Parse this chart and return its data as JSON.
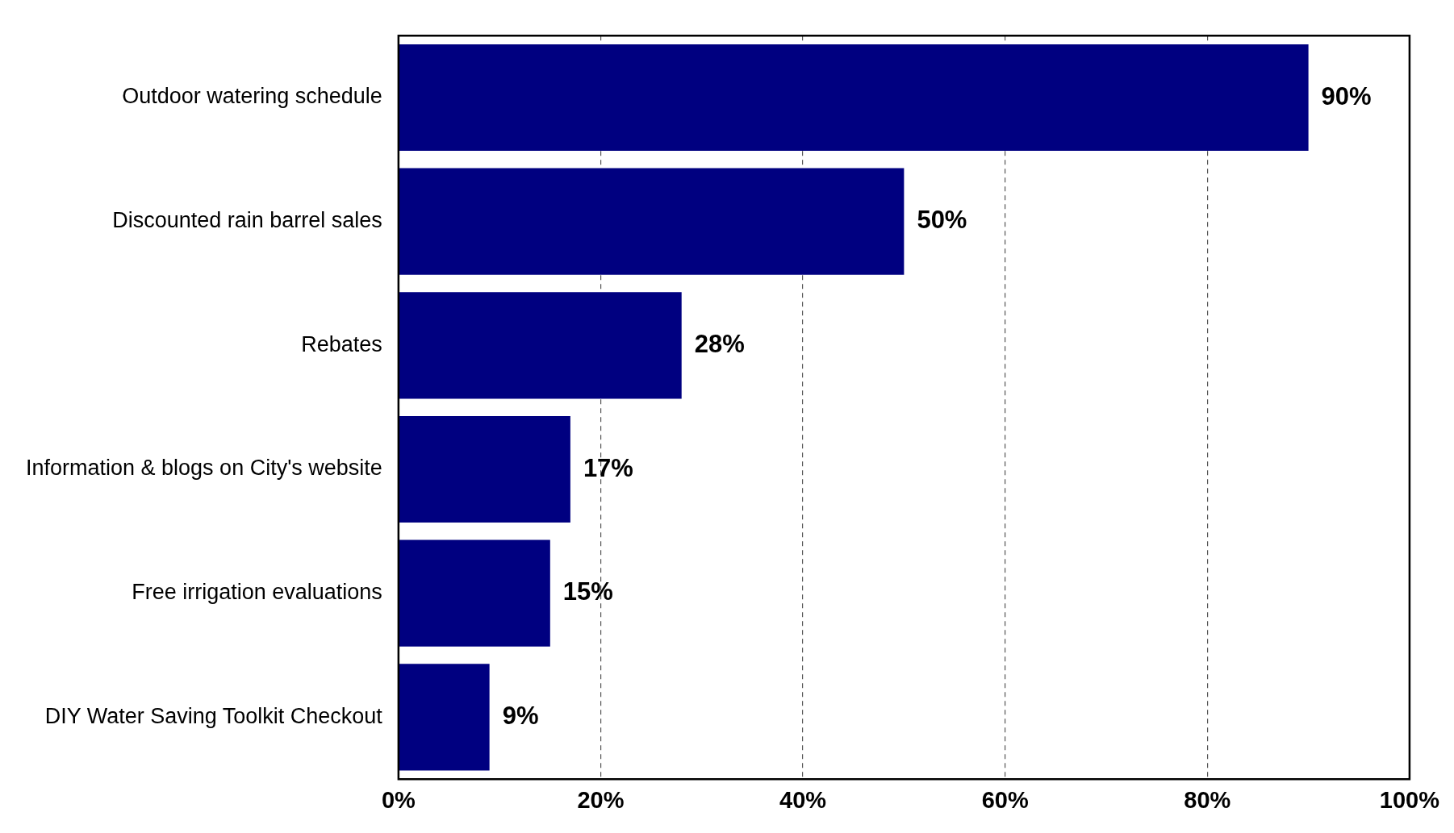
{
  "chart_data": {
    "type": "bar",
    "orientation": "horizontal",
    "categories": [
      "Outdoor watering schedule",
      "Discounted rain barrel sales",
      "Rebates",
      "Information & blogs on City's website",
      "Free irrigation evaluations",
      "DIY Water Saving Toolkit Checkout"
    ],
    "values": [
      90,
      50,
      28,
      17,
      15,
      9
    ],
    "value_labels": [
      "90%",
      "50%",
      "28%",
      "17%",
      "15%",
      "9%"
    ],
    "color": "#000080",
    "xlim": [
      0,
      100
    ],
    "xticks": [
      {
        "value": 0,
        "label": "0%"
      },
      {
        "value": 20,
        "label": "20%"
      },
      {
        "value": 40,
        "label": "40%"
      },
      {
        "value": 60,
        "label": "60%"
      },
      {
        "value": 80,
        "label": "80%"
      },
      {
        "value": 100,
        "label": "100%"
      }
    ],
    "grid": "x",
    "legend": false
  }
}
